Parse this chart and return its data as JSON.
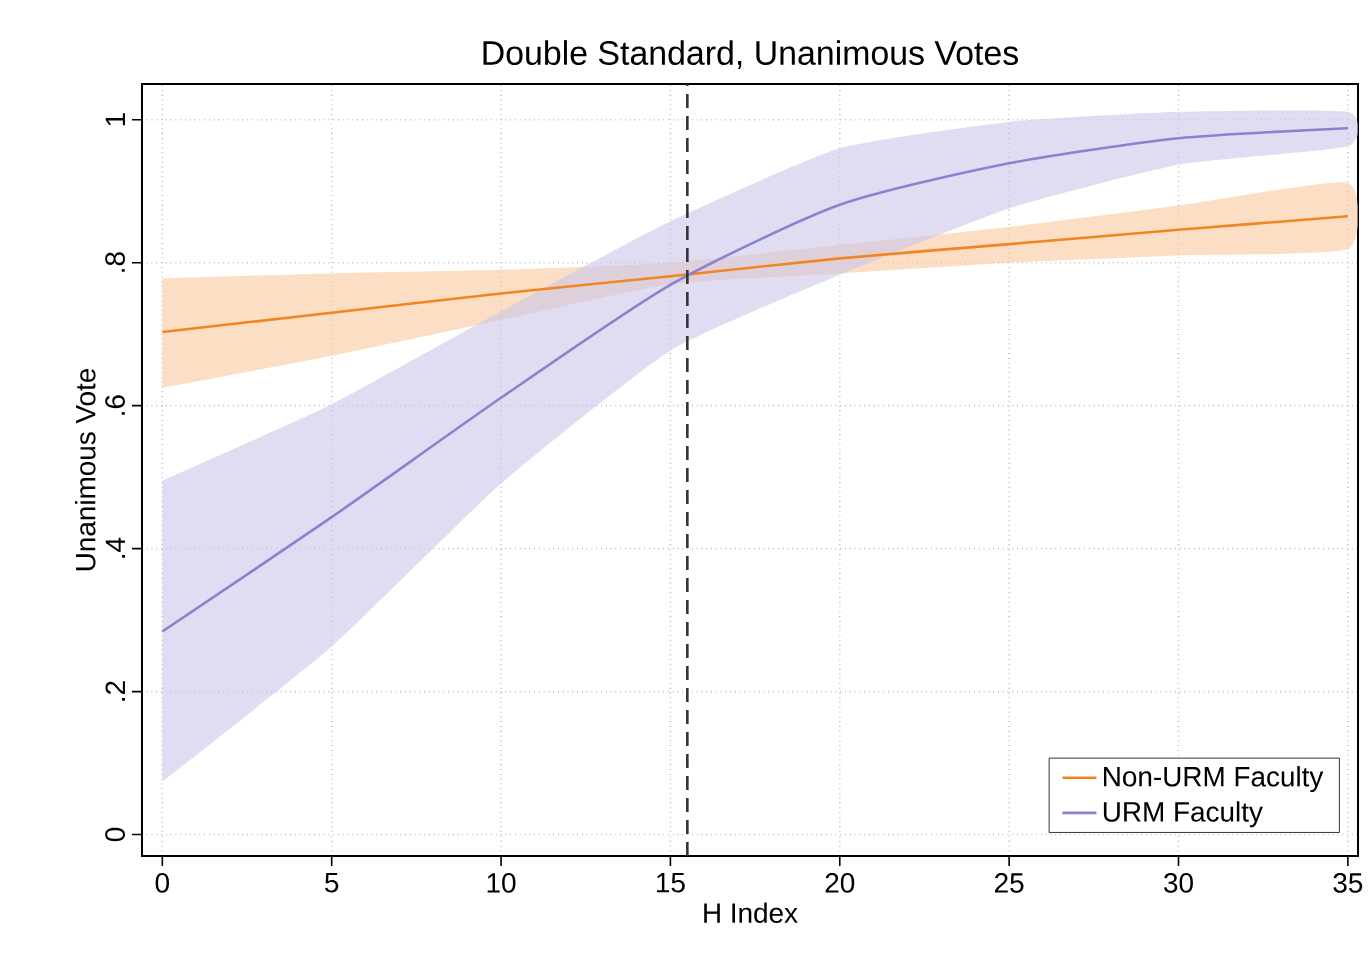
{
  "chart_data": {
    "type": "line",
    "title": "Double Standard, Unanimous Votes",
    "xlabel": "H Index",
    "ylabel": "Unanimous Vote",
    "xlim": [
      -0.6,
      35.3
    ],
    "ylim": [
      -0.03,
      1.05
    ],
    "xticks": [
      0,
      5,
      10,
      15,
      20,
      25,
      30,
      35
    ],
    "yticks": [
      {
        "value": 0,
        "label": "0"
      },
      {
        "value": 0.2,
        "label": ".2"
      },
      {
        "value": 0.4,
        "label": ".4"
      },
      {
        "value": 0.6,
        "label": ".6"
      },
      {
        "value": 0.8,
        "label": ".8"
      },
      {
        "value": 1,
        "label": "1"
      }
    ],
    "grid": true,
    "legend": "bottom right",
    "line_style": "solid",
    "marker": "none",
    "ref_lines": [
      {
        "axis": "x",
        "value": 15.5,
        "color": "#333333",
        "line_style": "dashed"
      }
    ],
    "series": [
      {
        "name": "Non-URM Faculty",
        "color": "#f28522",
        "x": [
          0,
          5,
          10,
          15,
          20,
          25,
          30,
          35
        ],
        "values": [
          0.703,
          0.73,
          0.757,
          0.781,
          0.806,
          0.826,
          0.846,
          0.865
        ],
        "lower": [
          0.625,
          0.67,
          0.72,
          0.77,
          0.785,
          0.8,
          0.81,
          0.819
        ],
        "upper": [
          0.778,
          0.785,
          0.79,
          0.8,
          0.825,
          0.85,
          0.88,
          0.912
        ]
      },
      {
        "name": "URM Faculty",
        "color": "#8c80d0",
        "x": [
          0,
          5,
          10,
          15,
          20,
          25,
          30,
          35
        ],
        "values": [
          0.284,
          0.444,
          0.611,
          0.769,
          0.881,
          0.939,
          0.974,
          0.988
        ],
        "lower": [
          0.074,
          0.263,
          0.491,
          0.677,
          0.783,
          0.876,
          0.937,
          0.963
        ],
        "upper": [
          0.495,
          0.602,
          0.732,
          0.858,
          0.96,
          0.997,
          1.011,
          1.011
        ]
      }
    ]
  }
}
